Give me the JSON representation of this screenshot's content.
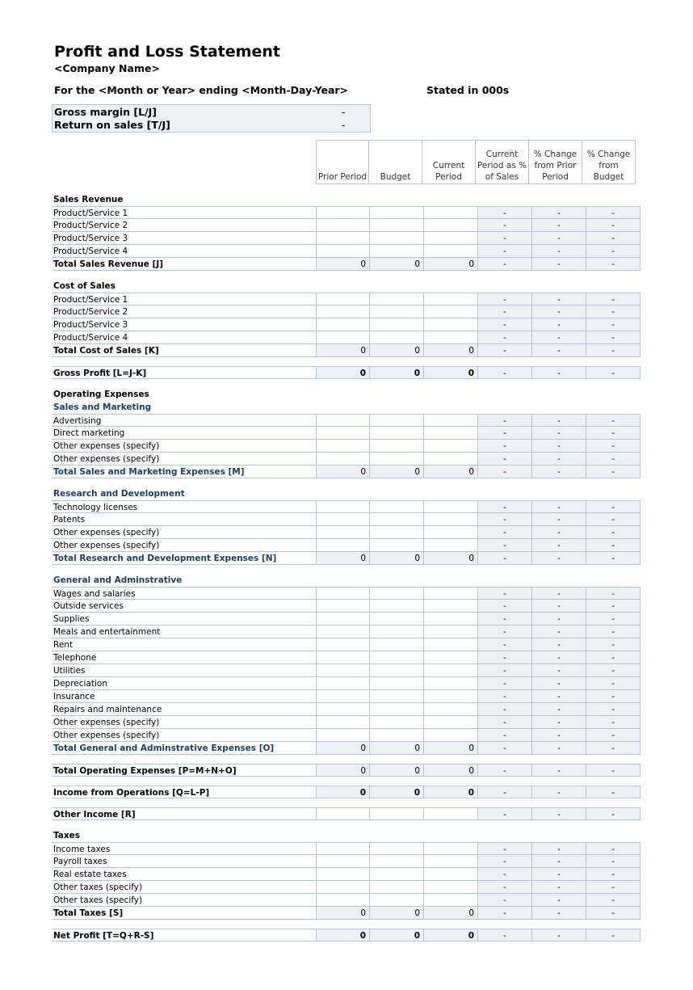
{
  "title": "Profit and Loss Statement",
  "company": "<Company Name>",
  "period": "For the <Month or Year> ending <Month-Day-Year>",
  "stated": "Stated in 000s",
  "summary": [
    {
      "label": "Gross margin  [L/J]",
      "value": "-"
    },
    {
      "label": "Return on sales  [T/J]",
      "value": "-"
    }
  ],
  "columns": [
    "Prior Period",
    "Budget",
    "Current Period",
    "Current Period as % of Sales",
    "% Change from Prior Period",
    "% Change from Budget"
  ],
  "colors": {
    "border": "#b8c4d6",
    "shade": "#edf0f5",
    "subheading": "#1f3f60"
  },
  "blocks": [
    {
      "headings": [
        {
          "text": "Sales Revenue"
        }
      ],
      "items": [
        "Product/Service 1",
        "Product/Service 2",
        "Product/Service 3",
        "Product/Service 4"
      ],
      "total": {
        "label": "Total Sales Revenue  [J]",
        "values": [
          "0",
          "0",
          "0",
          "-",
          "-",
          "-"
        ]
      }
    },
    {
      "headings": [
        {
          "text": "Cost of Sales"
        }
      ],
      "items": [
        "Product/Service 1",
        "Product/Service 2",
        "Product/Service 3",
        "Product/Service 4"
      ],
      "total": {
        "label": "Total Cost of Sales  [K]",
        "values": [
          "0",
          "0",
          "0",
          "-",
          "-",
          "-"
        ]
      }
    },
    {
      "headings": [],
      "items": [],
      "total": {
        "label": "Gross Profit  [L=J-K]",
        "values": [
          "0",
          "0",
          "0",
          "-",
          "-",
          "-"
        ],
        "bold_values": true
      }
    },
    {
      "headings": [
        {
          "text": "Operating Expenses"
        },
        {
          "text": "Sales and Marketing",
          "blue": true
        }
      ],
      "items": [
        "Advertising",
        "Direct marketing",
        "Other expenses (specify)",
        "Other expenses (specify)"
      ],
      "total": {
        "label": "Total Sales and Marketing Expenses  [M]",
        "values": [
          "0",
          "0",
          "0",
          "-",
          "-",
          "-"
        ],
        "blue": true
      }
    },
    {
      "headings": [
        {
          "text": "Research and Development",
          "blue": true
        }
      ],
      "items": [
        "Technology licenses",
        "Patents",
        "Other expenses (specify)",
        "Other expenses (specify)"
      ],
      "total": {
        "label": "Total Research and Development Expenses  [N]",
        "values": [
          "0",
          "0",
          "0",
          "-",
          "-",
          "-"
        ],
        "blue": true
      }
    },
    {
      "headings": [
        {
          "text": "General and Adminstrative",
          "blue": true
        }
      ],
      "items": [
        "Wages and salaries",
        "Outside services",
        "Supplies",
        "Meals and entertainment",
        "Rent",
        "Telephone",
        "Utilities",
        "Depreciation",
        "Insurance",
        "Repairs and maintenance",
        "Other expenses (specify)",
        "Other expenses (specify)"
      ],
      "total": {
        "label": "Total General and Adminstrative Expenses  [O]",
        "values": [
          "0",
          "0",
          "0",
          "-",
          "-",
          "-"
        ],
        "blue": true
      }
    },
    {
      "headings": [],
      "items": [],
      "total": {
        "label": "Total Operating Expenses  [P=M+N+O]",
        "values": [
          "0",
          "0",
          "0",
          "-",
          "-",
          "-"
        ]
      }
    },
    {
      "headings": [],
      "items": [],
      "total": {
        "label": "Income from Operations  [Q=L-P]",
        "values": [
          "0",
          "0",
          "0",
          "-",
          "-",
          "-"
        ],
        "bold_values": true
      }
    },
    {
      "headings": [],
      "items": [],
      "total": {
        "label": "Other Income  [R]",
        "values": [
          "",
          "",
          "",
          "-",
          "-",
          "-"
        ],
        "plain": true
      }
    },
    {
      "headings": [
        {
          "text": "Taxes"
        }
      ],
      "items": [
        "Income taxes",
        "Payroll taxes",
        "Real estate taxes",
        "Other taxes (specify)",
        "Other taxes (specify)"
      ],
      "total": {
        "label": "Total Taxes  [S]",
        "values": [
          "0",
          "0",
          "0",
          "-",
          "-",
          "-"
        ]
      }
    },
    {
      "headings": [],
      "items": [],
      "total": {
        "label": "Net Profit  [T=Q+R-S]",
        "values": [
          "0",
          "0",
          "0",
          "-",
          "-",
          "-"
        ],
        "bold_values": true
      }
    }
  ]
}
